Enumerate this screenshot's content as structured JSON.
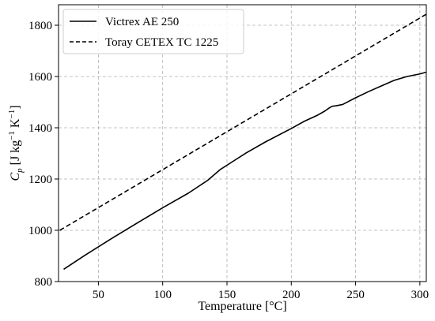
{
  "chart_data": {
    "type": "line",
    "title": "",
    "xlabel": "Temperature [°C]",
    "ylabel_parts": {
      "symbol": "C",
      "subscript": "p",
      "units_open": " [J kg",
      "exp1": "−1",
      "units_mid": " K",
      "exp2": "−1",
      "units_close": "]"
    },
    "xlim": [
      19,
      305
    ],
    "ylim": [
      800,
      1880
    ],
    "xticks": [
      50,
      100,
      150,
      200,
      250,
      300
    ],
    "yticks": [
      800,
      1000,
      1200,
      1400,
      1600,
      1800
    ],
    "grid": true,
    "legend_position": "top-left",
    "series": [
      {
        "name": "Victrex AE 250",
        "style": "solid",
        "color": "#000000",
        "x": [
          23,
          40,
          60,
          80,
          100,
          120,
          135,
          145,
          155,
          165,
          180,
          200,
          210,
          220,
          226,
          230,
          232,
          235,
          240,
          250,
          260,
          270,
          280,
          290,
          300,
          305
        ],
        "y": [
          848,
          904,
          967,
          1028,
          1088,
          1145,
          1195,
          1238,
          1270,
          1302,
          1345,
          1397,
          1425,
          1448,
          1465,
          1479,
          1484,
          1486,
          1491,
          1517,
          1541,
          1563,
          1585,
          1600,
          1610,
          1617
        ]
      },
      {
        "name": "Toray CETEX TC 1225",
        "style": "dashed",
        "color": "#000000",
        "x": [
          20,
          305
        ],
        "y": [
          1000,
          1843
        ]
      }
    ]
  }
}
